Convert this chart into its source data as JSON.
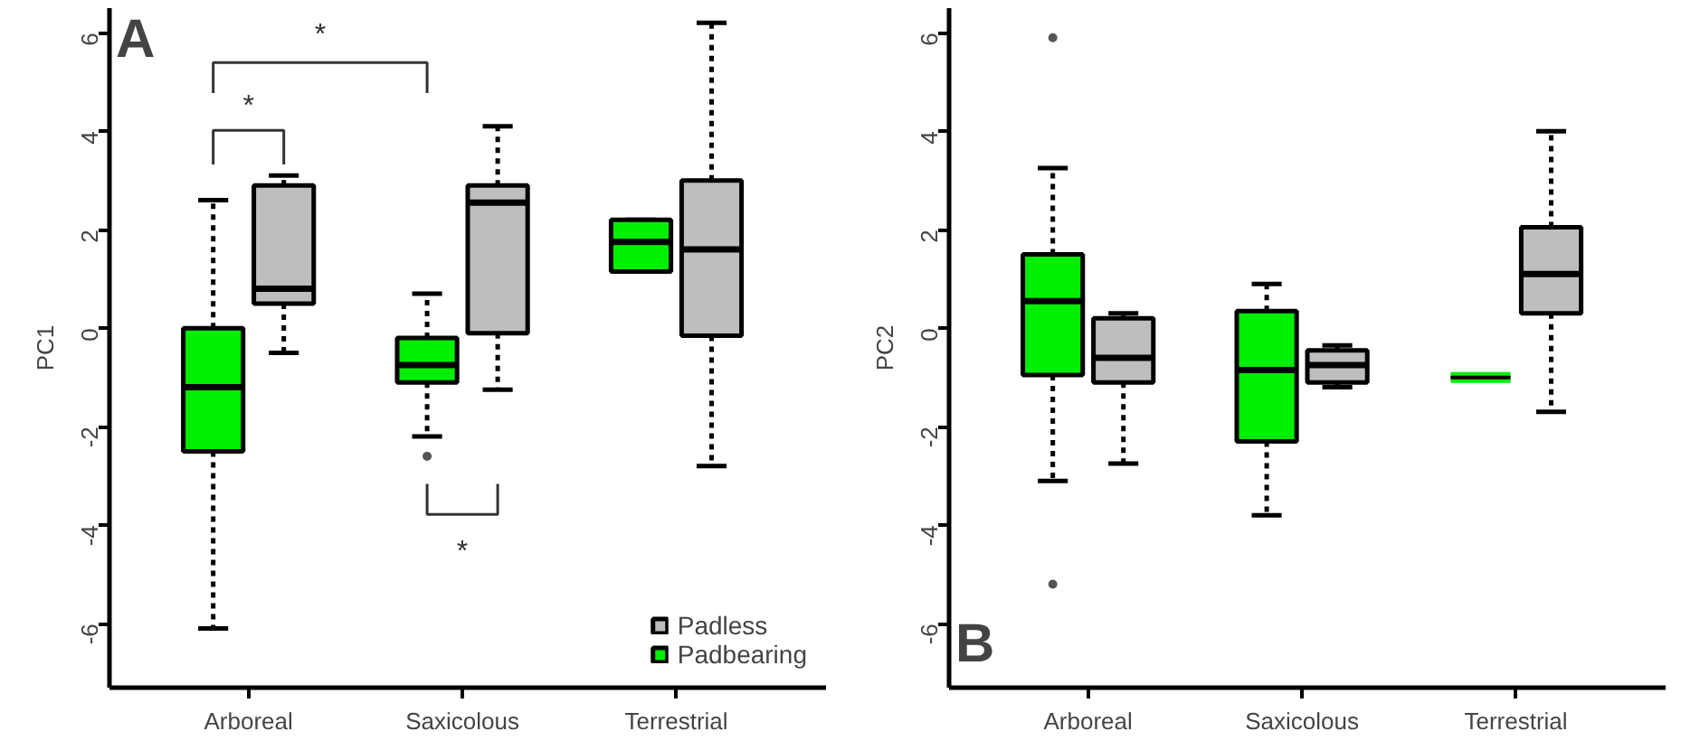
{
  "chart_data": [
    {
      "type": "box",
      "title": "A",
      "ylabel": "PC1",
      "categories": [
        "Arboreal",
        "Saxicolous",
        "Terrestrial"
      ],
      "ylim": [
        -7.3,
        6.5
      ],
      "yticks": [
        -6,
        -4,
        -2,
        0,
        2,
        4,
        6
      ],
      "grid": false,
      "legend": "bottom right",
      "annotations": [
        "*",
        "*",
        "*"
      ],
      "series": [
        {
          "name": "Padbearing",
          "color": "#00ee00",
          "boxes": [
            {
              "low": -6.1,
              "q1": -2.5,
              "median": -1.2,
              "q3": 0.0,
              "high": 2.6
            },
            {
              "low": -2.2,
              "q1": -1.1,
              "median": -0.75,
              "q3": -0.2,
              "high": 0.7,
              "outliers": [
                -2.6
              ]
            },
            {
              "low": 1.15,
              "q1": 1.15,
              "median": 1.75,
              "q3": 2.2,
              "high": 2.2
            }
          ]
        },
        {
          "name": "Padless",
          "color": "#bebebe",
          "boxes": [
            {
              "low": -0.5,
              "q1": 0.5,
              "median": 0.8,
              "q3": 2.9,
              "high": 3.1
            },
            {
              "low": -1.25,
              "q1": -0.1,
              "median": 2.55,
              "q3": 2.9,
              "high": 4.1
            },
            {
              "low": -2.8,
              "q1": -0.15,
              "median": 1.6,
              "q3": 3.0,
              "high": 6.2
            }
          ]
        }
      ]
    },
    {
      "type": "box",
      "title": "B",
      "ylabel": "PC2",
      "categories": [
        "Arboreal",
        "Saxicolous",
        "Terrestrial"
      ],
      "ylim": [
        -7.3,
        6.5
      ],
      "yticks": [
        -6,
        -4,
        -2,
        0,
        2,
        4,
        6
      ],
      "grid": false,
      "series": [
        {
          "color": "#00ee00",
          "boxes": [
            {
              "low": -3.1,
              "q1": -0.95,
              "median": 0.55,
              "q3": 1.5,
              "high": 3.25,
              "outliers": [
                5.9,
                -5.2
              ]
            },
            {
              "low": -3.8,
              "q1": -2.3,
              "median": -0.85,
              "q3": 0.35,
              "high": 0.9
            },
            {
              "low": -1.0,
              "q1": -1.0,
              "median": -1.0,
              "q3": -1.0,
              "high": -1.0
            }
          ]
        },
        {
          "color": "#bebebe",
          "boxes": [
            {
              "low": -2.75,
              "q1": -1.1,
              "median": -0.6,
              "q3": 0.2,
              "high": 0.3
            },
            {
              "low": -1.2,
              "q1": -1.1,
              "median": -0.75,
              "q3": -0.45,
              "high": -0.35
            },
            {
              "low": -1.7,
              "q1": 0.3,
              "median": 1.1,
              "q3": 2.05,
              "high": 4.0
            }
          ]
        }
      ]
    }
  ]
}
